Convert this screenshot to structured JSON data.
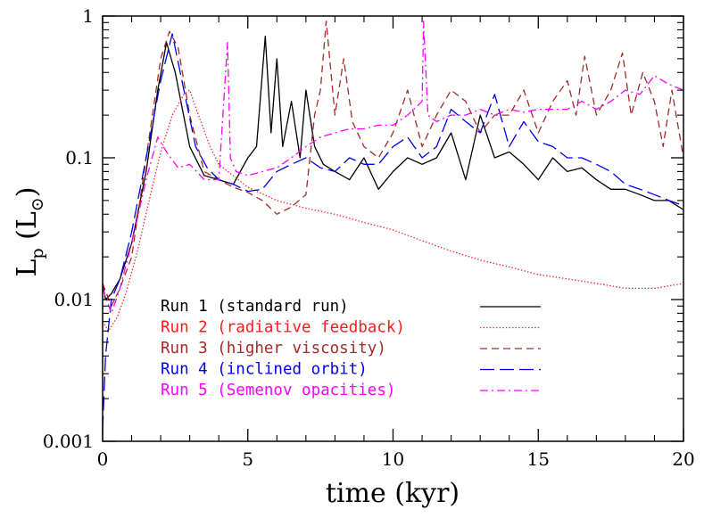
{
  "chart_data": {
    "type": "line",
    "xlabel": "time (kyr)",
    "ylabel_main": "L",
    "ylabel_sub": "p",
    "ylabel_unit_open": " (L",
    "ylabel_unit_sub": "⊙",
    "ylabel_unit_close": ")",
    "xlim": [
      0,
      20
    ],
    "ylim": [
      0.001,
      1
    ],
    "yscale": "log",
    "grid": false,
    "legend_position": "bottom-left",
    "x_ticks": [
      0,
      5,
      10,
      15,
      20
    ],
    "x_tick_labels": [
      "0",
      "5",
      "10",
      "15",
      "20"
    ],
    "y_ticks": [
      0.001,
      0.01,
      0.1,
      1
    ],
    "y_tick_labels": [
      "0.001",
      "0.01",
      "0.1",
      "1"
    ],
    "series": [
      {
        "name": "Run 1 (standard run)",
        "color": "#000000",
        "dash": "solid",
        "x": [
          0,
          0.1,
          0.3,
          0.6,
          1.0,
          1.5,
          1.9,
          2.2,
          2.5,
          3.0,
          3.5,
          4.0,
          4.5,
          5.0,
          5.3,
          5.6,
          5.8,
          6.0,
          6.2,
          6.5,
          6.8,
          7.0,
          7.3,
          7.6,
          8.0,
          8.5,
          9.0,
          9.5,
          10.0,
          10.5,
          11.0,
          11.5,
          12.0,
          12.5,
          13.0,
          13.5,
          14.0,
          14.5,
          15.0,
          15.5,
          16.0,
          16.5,
          17.0,
          17.5,
          18.0,
          18.5,
          19.0,
          19.5,
          20.0
        ],
        "y": [
          0.013,
          0.01,
          0.011,
          0.014,
          0.025,
          0.08,
          0.3,
          0.65,
          0.4,
          0.12,
          0.075,
          0.07,
          0.065,
          0.1,
          0.12,
          0.72,
          0.15,
          0.5,
          0.12,
          0.25,
          0.1,
          0.3,
          0.12,
          0.09,
          0.08,
          0.07,
          0.1,
          0.06,
          0.08,
          0.1,
          0.09,
          0.1,
          0.15,
          0.07,
          0.2,
          0.1,
          0.11,
          0.09,
          0.07,
          0.1,
          0.08,
          0.085,
          0.07,
          0.06,
          0.06,
          0.055,
          0.05,
          0.05,
          0.043
        ]
      },
      {
        "name": "Run 2  (radiative feedback)",
        "color": "#ff1a1a",
        "dash": "dotted",
        "x": [
          0,
          0.2,
          0.5,
          0.8,
          1.2,
          1.6,
          2.0,
          2.4,
          2.8,
          3.0,
          3.3,
          3.7,
          4.0,
          5.0,
          6.0,
          7.0,
          8.0,
          9.0,
          10.0,
          11.0,
          12.0,
          13.0,
          14.0,
          15.0,
          16.0,
          17.0,
          18.0,
          19.0,
          20.0
        ],
        "y": [
          0.007,
          0.006,
          0.0075,
          0.011,
          0.022,
          0.05,
          0.11,
          0.2,
          0.28,
          0.3,
          0.2,
          0.12,
          0.09,
          0.062,
          0.05,
          0.044,
          0.04,
          0.035,
          0.031,
          0.026,
          0.022,
          0.019,
          0.017,
          0.015,
          0.014,
          0.013,
          0.012,
          0.012,
          0.013
        ]
      },
      {
        "name": "Run 3 (higher viscosity)",
        "color": "#a52a2a",
        "dash": "dashed",
        "x": [
          0,
          0.3,
          0.6,
          1.0,
          1.5,
          2.0,
          2.3,
          2.6,
          3.0,
          3.5,
          4.0,
          4.5,
          5.0,
          5.5,
          6.0,
          6.5,
          7.0,
          7.3,
          7.5,
          7.7,
          8.0,
          8.3,
          8.6,
          9.0,
          9.5,
          10.0,
          10.5,
          11.0,
          11.5,
          12.0,
          12.5,
          13.0,
          13.5,
          14.0,
          14.5,
          15.0,
          15.5,
          16.0,
          16.3,
          16.6,
          17.0,
          17.5,
          17.9,
          18.2,
          18.6,
          19.0,
          19.3,
          19.6,
          20.0
        ],
        "y": [
          0.013,
          0.009,
          0.012,
          0.02,
          0.1,
          0.5,
          0.78,
          0.6,
          0.2,
          0.08,
          0.07,
          0.062,
          0.057,
          0.05,
          0.04,
          0.045,
          0.055,
          0.2,
          0.3,
          0.92,
          0.2,
          0.5,
          0.18,
          0.12,
          0.1,
          0.15,
          0.3,
          0.12,
          0.2,
          0.3,
          0.25,
          0.15,
          0.2,
          0.2,
          0.3,
          0.15,
          0.25,
          0.35,
          0.2,
          0.52,
          0.2,
          0.3,
          0.55,
          0.2,
          0.4,
          0.25,
          0.12,
          0.3,
          0.1
        ]
      },
      {
        "name": "Run 4 (inclined orbit)",
        "color": "#0000e6",
        "dash": "long-dashed",
        "x": [
          0,
          0.1,
          0.3,
          0.6,
          1.0,
          1.5,
          2.0,
          2.4,
          2.8,
          3.2,
          3.6,
          4.0,
          4.5,
          5.0,
          5.5,
          6.0,
          6.5,
          7.0,
          7.5,
          8.0,
          8.5,
          9.0,
          9.5,
          10.0,
          10.5,
          11.0,
          11.5,
          12.0,
          12.5,
          13.0,
          13.5,
          14.0,
          14.5,
          15.0,
          15.5,
          16.0,
          16.5,
          17.0,
          17.5,
          18.0,
          18.5,
          19.0,
          19.5,
          20.0
        ],
        "y": [
          0.0012,
          0.004,
          0.01,
          0.014,
          0.03,
          0.1,
          0.35,
          0.75,
          0.3,
          0.12,
          0.085,
          0.07,
          0.065,
          0.058,
          0.06,
          0.08,
          0.09,
          0.1,
          0.085,
          0.08,
          0.1,
          0.09,
          0.09,
          0.12,
          0.14,
          0.1,
          0.12,
          0.22,
          0.18,
          0.15,
          0.28,
          0.12,
          0.18,
          0.13,
          0.12,
          0.1,
          0.1,
          0.09,
          0.08,
          0.065,
          0.06,
          0.055,
          0.05,
          0.046
        ]
      },
      {
        "name": "Run 5 (Semenov opacities)",
        "color": "#ff00ff",
        "dash": "dash-dot",
        "x": [
          0,
          0.3,
          0.6,
          1.0,
          1.5,
          1.9,
          2.2,
          2.6,
          3.0,
          3.5,
          4.0,
          4.3,
          4.4,
          4.6,
          5.0,
          5.5,
          6.0,
          6.5,
          7.0,
          7.5,
          8.0,
          8.5,
          9.0,
          9.5,
          10.0,
          10.5,
          11.0,
          11.05,
          11.2,
          11.5,
          12.0,
          12.5,
          13.0,
          13.5,
          14.0,
          14.5,
          15.0,
          15.5,
          16.0,
          16.5,
          17.0,
          17.5,
          18.0,
          18.5,
          19.0,
          19.5,
          20.0
        ],
        "y": [
          0.012,
          0.008,
          0.012,
          0.025,
          0.07,
          0.14,
          0.11,
          0.085,
          0.09,
          0.07,
          0.07,
          0.65,
          0.1,
          0.08,
          0.075,
          0.08,
          0.085,
          0.1,
          0.12,
          0.14,
          0.15,
          0.16,
          0.16,
          0.17,
          0.17,
          0.2,
          0.25,
          0.92,
          0.2,
          0.18,
          0.2,
          0.2,
          0.22,
          0.2,
          0.22,
          0.21,
          0.22,
          0.22,
          0.22,
          0.25,
          0.22,
          0.25,
          0.3,
          0.28,
          0.38,
          0.33,
          0.3
        ]
      }
    ]
  }
}
